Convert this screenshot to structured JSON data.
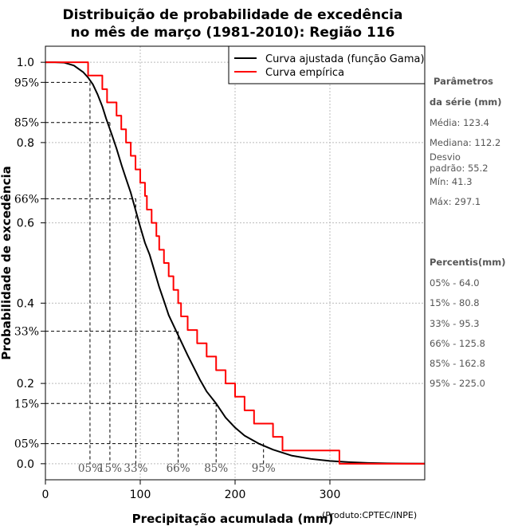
{
  "chart_data": {
    "type": "line",
    "title_line1": "Distribuição de probabilidade de excedência",
    "title_line2": "no mês de março (1981-2010): Região 116",
    "xlabel": "Precipitação acumulada (mm)",
    "ylabel": "Probabilidade de excedência",
    "credit": "(Produto:CPTEC/INPE)",
    "xlim": [
      0,
      400
    ],
    "ylim": [
      -0.04,
      1.04
    ],
    "x_ticks": [
      0,
      100,
      200,
      300
    ],
    "x_tick_labels": [
      "0",
      "100",
      "200",
      "300"
    ],
    "y_ticks": [
      0.0,
      0.2,
      0.4,
      0.6,
      0.8,
      1.0
    ],
    "y_tick_labels": [
      "0.0",
      "0.2",
      "0.4",
      "0.6",
      "0.8",
      "1.0"
    ],
    "y_pct_ticks": [
      0.05,
      0.15,
      0.33,
      0.66,
      0.85,
      0.95
    ],
    "y_pct_labels": [
      "05%",
      "15%",
      "33%",
      "66%",
      "85%",
      "95%"
    ],
    "grid": true,
    "legend": {
      "position": "top-right",
      "entries": [
        {
          "name": "Curva ajustada (função Gama)",
          "color": "#000000"
        },
        {
          "name": "Curva empírica",
          "color": "#ff0000"
        }
      ]
    },
    "series": [
      {
        "name": "Curva ajustada (função Gama)",
        "color": "#000000",
        "x": [
          0,
          10,
          20,
          30,
          40,
          45,
          50,
          55,
          60,
          64,
          70,
          75,
          80.8,
          85,
          90,
          95.3,
          100,
          105,
          110,
          115,
          120,
          125.8,
          130,
          140,
          150,
          162.8,
          170,
          180,
          190,
          200,
          210,
          225,
          240,
          260,
          280,
          300,
          320,
          340,
          360,
          380,
          400
        ],
        "y": [
          1.0,
          1.0,
          0.999,
          0.992,
          0.975,
          0.962,
          0.945,
          0.92,
          0.89,
          0.86,
          0.82,
          0.785,
          0.74,
          0.71,
          0.675,
          0.63,
          0.59,
          0.55,
          0.52,
          0.48,
          0.44,
          0.4,
          0.37,
          0.32,
          0.27,
          0.21,
          0.18,
          0.15,
          0.115,
          0.09,
          0.07,
          0.05,
          0.035,
          0.02,
          0.012,
          0.007,
          0.004,
          0.002,
          0.001,
          0.0005,
          0.0002
        ]
      },
      {
        "name": "Curva empírica",
        "color": "#ff0000",
        "step": true,
        "x": [
          0,
          41.3,
          45,
          50,
          56,
          60,
          65,
          75,
          80,
          85,
          90,
          95,
          100,
          105,
          107,
          112,
          117,
          120,
          125,
          130,
          135,
          140,
          143,
          150,
          160,
          170,
          180,
          190,
          200,
          210,
          220,
          240,
          250,
          260,
          270,
          280,
          297.1,
          310,
          400
        ],
        "y": [
          1.0,
          1.0,
          0.967,
          0.967,
          0.967,
          0.933,
          0.9,
          0.867,
          0.833,
          0.8,
          0.767,
          0.733,
          0.7,
          0.667,
          0.633,
          0.6,
          0.567,
          0.533,
          0.5,
          0.467,
          0.433,
          0.4,
          0.367,
          0.333,
          0.3,
          0.267,
          0.233,
          0.2,
          0.167,
          0.133,
          0.1,
          0.067,
          0.033,
          0.033,
          0.033,
          0.033,
          0.033,
          0.0,
          0.0
        ]
      }
    ],
    "percentile_markers": [
      {
        "label": "05%",
        "p": 0.95,
        "x": 47
      },
      {
        "label": "15%",
        "p": 0.85,
        "x": 68
      },
      {
        "label": "33%",
        "p": 0.66,
        "x": 95.3
      },
      {
        "label": "66%",
        "p": 0.33,
        "x": 140
      },
      {
        "label": "85%",
        "p": 0.15,
        "x": 180
      },
      {
        "label": "95%",
        "p": 0.05,
        "x": 230
      }
    ]
  },
  "side_panel": {
    "params_title_1": "Parâmetros",
    "params_title_2": "da série (mm)",
    "media": "Média: 123.4",
    "mediana": "Mediana: 112.2",
    "desvio_1": "Desvio",
    "desvio_2": "padrão: 55.2",
    "min": "Mín: 41.3",
    "max": "Máx: 297.1",
    "percentis_title": "Percentis(mm)",
    "p05": "05% - 64.0",
    "p15": "15% - 80.8",
    "p33": "33% - 95.3",
    "p66": "66% - 125.8",
    "p85": "85% - 162.8",
    "p95": "95% - 225.0"
  }
}
